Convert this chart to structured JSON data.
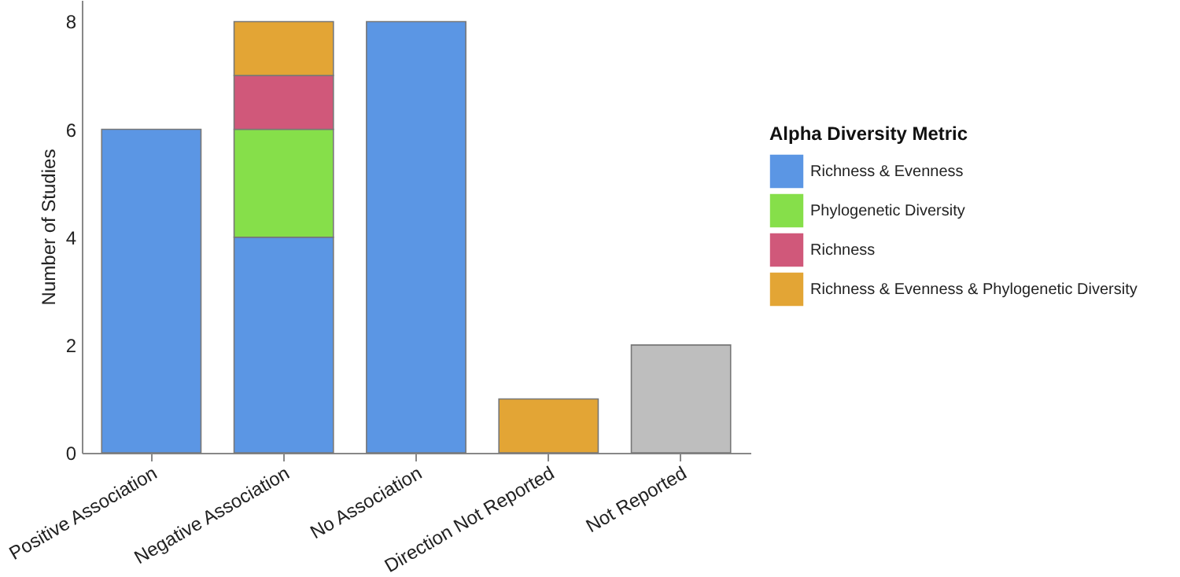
{
  "chart_data": {
    "type": "bar",
    "stacked": true,
    "ylabel": "Number of Studies",
    "legend_title": "Alpha Diversity Metric",
    "legend": "right",
    "categories": [
      "Positive Association",
      "Negative Association",
      "No Association",
      "Direction Not Reported",
      "Not Reported"
    ],
    "series": [
      {
        "name": "Richness & Evenness",
        "color": "#5b96e4",
        "values": [
          6,
          4,
          8,
          null,
          null
        ]
      },
      {
        "name": "Phylogenetic Diversity",
        "color": "#86df4a",
        "values": [
          null,
          2,
          null,
          null,
          null
        ]
      },
      {
        "name": "Richness",
        "color": "#d0587a",
        "values": [
          null,
          1,
          null,
          null,
          null
        ]
      },
      {
        "name": "Richness & Evenness & Phylogenetic Diversity",
        "color": "#e3a535",
        "values": [
          null,
          1,
          null,
          1,
          null
        ]
      },
      {
        "color": "#bebebe",
        "values": [
          null,
          null,
          null,
          null,
          2
        ]
      }
    ],
    "ylim": [
      0,
      8.4
    ],
    "yticks": [
      0,
      2,
      4,
      6,
      8
    ],
    "grid": false
  }
}
